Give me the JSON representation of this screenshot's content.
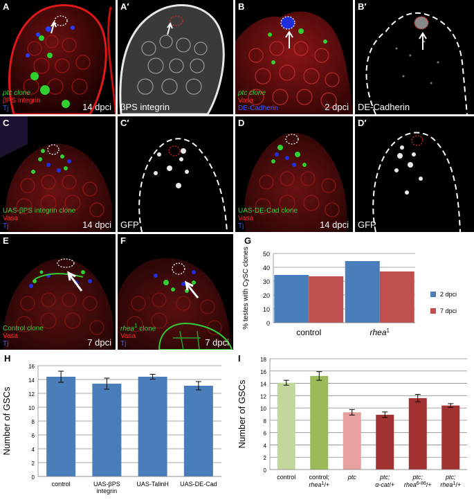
{
  "panels": {
    "A": {
      "label": "A",
      "legend": [
        "ptc clone",
        "βPS integrin",
        "Tj"
      ],
      "time": "14 dpci"
    },
    "A2": {
      "label": "A′",
      "title": "βPS integrin"
    },
    "B": {
      "label": "B",
      "legend": [
        "ptc clone",
        "Vasa",
        "DE-Cadherin"
      ],
      "time": "2 dpci"
    },
    "B2": {
      "label": "B′",
      "title": "DE-Cadherin"
    },
    "C": {
      "label": "C",
      "legend": [
        "UAS-βPS integrin clone",
        "Vasa",
        "Tj"
      ],
      "time": "14 dpci"
    },
    "C2": {
      "label": "C′",
      "title": "GFP"
    },
    "D": {
      "label": "D",
      "legend": [
        "UAS-DE-Cad clone",
        "Vasa",
        "Tj"
      ],
      "time": "14 dpci"
    },
    "D2": {
      "label": "D′",
      "title": "GFP"
    },
    "E": {
      "label": "E",
      "legend": [
        "Control clone",
        "Vasa",
        "Tj"
      ],
      "time": "7 dpci"
    },
    "F": {
      "label": "F",
      "legend": [
        "rhea",
        "1",
        " clone",
        "Vasa",
        "Tj"
      ],
      "time": "7 dpci"
    }
  },
  "colors": {
    "blue": "#4a7ebb",
    "red": "#c0504d",
    "green_light": "#c3d69b",
    "green": "#9bbb59",
    "pink": "#e6a0a0",
    "dark_red": "#a33232"
  },
  "chart_data": [
    {
      "panel": "G",
      "type": "bar",
      "categories": [
        "control",
        "rhea1"
      ],
      "series": [
        {
          "name": "2 dpci",
          "values": [
            34.5,
            44.5
          ]
        },
        {
          "name": "7 dpci",
          "values": [
            33.5,
            37
          ]
        }
      ],
      "ylabel": "% testes with CySC clones",
      "ylim": [
        0,
        50
      ],
      "yticks": [
        0,
        10,
        20,
        30,
        40,
        50
      ],
      "grid": true,
      "legend": "right"
    },
    {
      "panel": "H",
      "type": "bar",
      "categories": [
        "control",
        "UAS-βPS integrin",
        "UAS-TalinH",
        "UAS-DE-Cad"
      ],
      "values": [
        14.4,
        13.4,
        14.4,
        13.1
      ],
      "errors": [
        0.8,
        0.8,
        0.35,
        0.6
      ],
      "ylabel": "Number of GSCs",
      "ylim": [
        0,
        16
      ],
      "yticks": [
        0,
        2,
        4,
        6,
        8,
        10,
        12,
        14,
        16
      ],
      "grid": true
    },
    {
      "panel": "I",
      "type": "bar",
      "categories": [
        "control",
        "control; rhea1/+",
        "ptc",
        "ptc; α-cat/+",
        "ptc; rhea6-86/+",
        "ptc; rhea1/+"
      ],
      "values": [
        14.1,
        15.2,
        9.3,
        8.9,
        11.6,
        10.4
      ],
      "errors": [
        0.4,
        0.7,
        0.45,
        0.45,
        0.6,
        0.3
      ],
      "ylabel": "Number of GSCs",
      "ylim": [
        0,
        18
      ],
      "yticks": [
        0,
        2,
        4,
        6,
        8,
        10,
        12,
        14,
        16,
        18
      ],
      "grid": true
    }
  ]
}
